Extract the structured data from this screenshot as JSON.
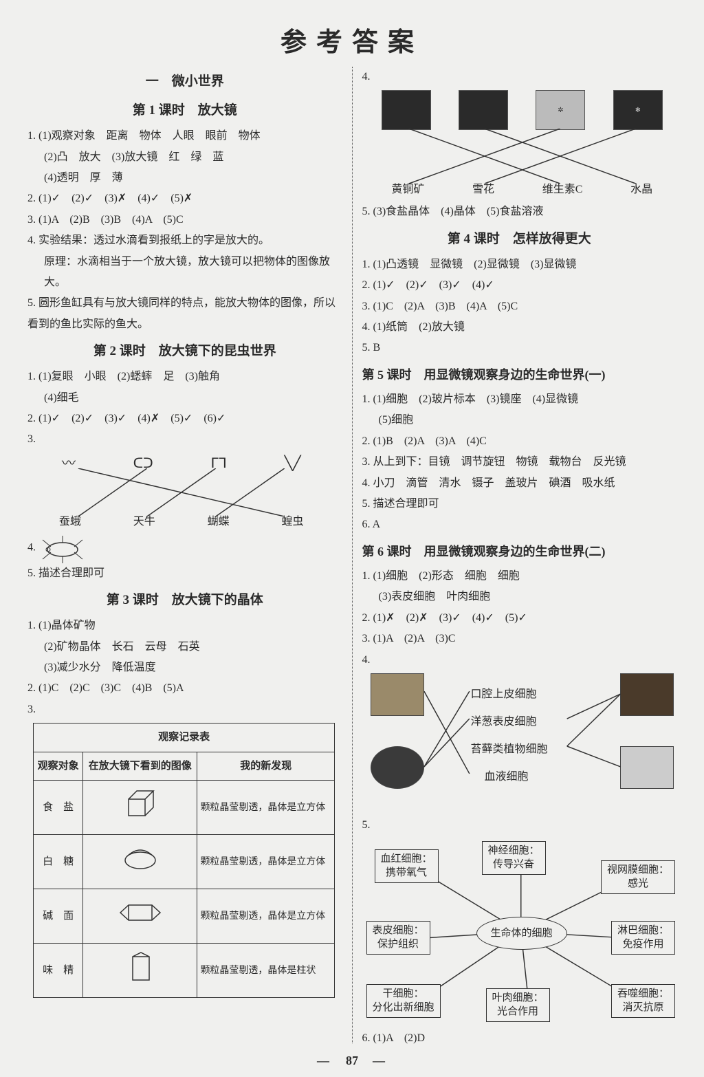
{
  "mainTitle": "参考答案",
  "unit1": "一　微小世界",
  "L1": {
    "title": "第 1 课时　放大镜",
    "a1": "1. (1)观察对象　距离　物体　人眼　眼前　物体",
    "a1b": "(2)凸　放大　(3)放大镜　红　绿　蓝",
    "a1c": "(4)透明　厚　薄",
    "a2": "2. (1)✓　(2)✓　(3)✗　(4)✓　(5)✗",
    "a3": "3. (1)A　(2)B　(3)B　(4)A　(5)C",
    "a4": "4. 实验结果：透过水滴看到报纸上的字是放大的。",
    "a4b": "原理：水滴相当于一个放大镜，放大镜可以把物体的图像放大。",
    "a5": "5. 圆形鱼缸具有与放大镜同样的特点，能放大物体的图像，所以看到的鱼比实际的鱼大。"
  },
  "L2": {
    "title": "第 2 课时　放大镜下的昆虫世界",
    "a1": "1. (1)复眼　小眼　(2)蟋蟀　足　(3)触角",
    "a1b": "(4)细毛",
    "a2": "2. (1)✓　(2)✓　(3)✓　(4)✗　(5)✓　(6)✓",
    "a3": "3.",
    "labels": [
      "蚕蛾",
      "天牛",
      "蝴蝶",
      "蝗虫"
    ],
    "a4": "4.",
    "a5": "5. 描述合理即可"
  },
  "L3": {
    "title": "第 3 课时　放大镜下的晶体",
    "a1": "1. (1)晶体矿物",
    "a1b": "(2)矿物晶体　长石　云母　石英",
    "a1c": "(3)减少水分　降低温度",
    "a2": "2. (1)C　(2)C　(3)C　(4)B　(5)A",
    "a3": "3.",
    "table": {
      "caption": "观察记录表",
      "cols": [
        "观察对象",
        "在放大镜下看到的图像",
        "我的新发现"
      ],
      "rows": [
        {
          "name": "食　盐",
          "desc": "颗粒晶莹剔透，晶体是立方体"
        },
        {
          "name": "白　糖",
          "desc": "颗粒晶莹剔透，晶体是立方体"
        },
        {
          "name": "碱　面",
          "desc": "颗粒晶莹剔透，晶体是立方体"
        },
        {
          "name": "味　精",
          "desc": "颗粒晶莹剔透，晶体是柱状"
        }
      ]
    }
  },
  "R4top": {
    "num": "4.",
    "labels": [
      "黄铜矿",
      "雪花",
      "维生素C",
      "水晶"
    ]
  },
  "R5line": "5. (3)食盐晶体　(4)晶体　(5)食盐溶液",
  "L4": {
    "title": "第 4 课时　怎样放得更大",
    "a1": "1. (1)凸透镜　显微镜　(2)显微镜　(3)显微镜",
    "a2": "2. (1)✓　(2)✓　(3)✓　(4)✓",
    "a3": "3. (1)C　(2)A　(3)B　(4)A　(5)C",
    "a4": "4. (1)纸筒　(2)放大镜",
    "a5": "5. B"
  },
  "L5": {
    "title": "第 5 课时　用显微镜观察身边的生命世界(一)",
    "a1": "1. (1)细胞　(2)玻片标本　(3)镜座　(4)显微镜",
    "a1b": "(5)细胞",
    "a2": "2. (1)B　(2)A　(3)A　(4)C",
    "a3": "3. 从上到下：目镜　调节旋钮　物镜　载物台　反光镜",
    "a4": "4. 小刀　滴管　清水　镊子　盖玻片　碘酒　吸水纸",
    "a5": "5. 描述合理即可",
    "a6": "6. A"
  },
  "L6": {
    "title": "第 6 课时　用显微镜观察身边的生命世界(二)",
    "a1": "1. (1)细胞　(2)形态　细胞　细胞",
    "a1b": "(3)表皮细胞　叶肉细胞",
    "a2": "2. (1)✗　(2)✗　(3)✓　(4)✓　(5)✓",
    "a3": "3. (1)A　(2)A　(3)C",
    "a4": "4.",
    "cellLabels": [
      "口腔上皮细胞",
      "洋葱表皮细胞",
      "苔藓类植物细胞",
      "血液细胞"
    ],
    "a5": "5.",
    "nodes": {
      "center": "生命体的细胞",
      "n1": "血红细胞：\n携带氧气",
      "n2": "神经细胞：\n传导兴奋",
      "n3": "视网膜细胞：\n感光",
      "n4": "表皮细胞：\n保护组织",
      "n5": "淋巴细胞：\n免疫作用",
      "n6": "干细胞：\n分化出新细胞",
      "n7": "叶肉细胞：\n光合作用",
      "n8": "吞噬细胞：\n消灭抗原"
    },
    "a6": "6. (1)A　(2)D"
  },
  "pageNumber": "87"
}
